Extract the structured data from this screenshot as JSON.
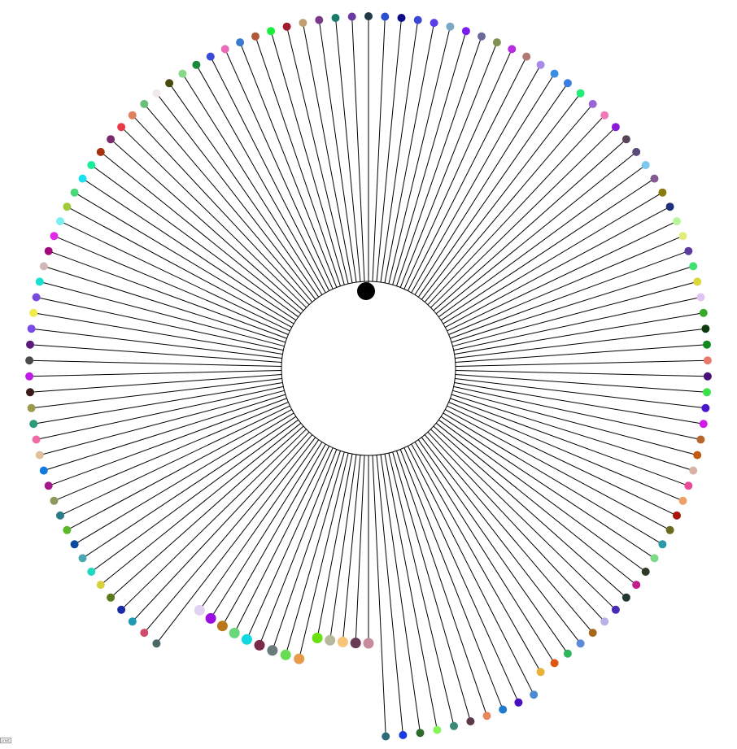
{
  "corner_tag": "crest",
  "diagram": {
    "type": "radial-tree",
    "root_color": "#000000",
    "link_color": "#000000",
    "nodes_clockwise_from_top": [
      "#1f3a44",
      "#2b4fcf",
      "#0b0b8a",
      "#3b48d6",
      "#5b3ee8",
      "#7ba7c6",
      "#7a1cf0",
      "#6a6a99",
      "#7d9152",
      "#b82cdf",
      "#b07a70",
      "#a88ae8",
      "#3b8fe0",
      "#3d7ce0",
      "#22ee77",
      "#9b66d8",
      "#ef7ab8",
      "#8c1ad8",
      "#5a4558",
      "#5a4a7a",
      "#7cc6f0",
      "#855a92",
      "#8a7a10",
      "#1f2f7a",
      "#b8f59a",
      "#e3ee7a",
      "#5a3ba0",
      "#3fe070",
      "#dcd63a",
      "#dfc4f4",
      "#3aaa2f",
      "#0f3a0f",
      "#0f8a1f",
      "#e77a6a",
      "#4a107a",
      "#3ae34a",
      "#4a16cc",
      "#d21ae8",
      "#b8642a",
      "#c25a0f",
      "#d8b2a5",
      "#ea4a9a",
      "#eea06a",
      "#a8150f",
      "#6a6a1f",
      "#2a9aa5",
      "#7ed88a",
      "#2f3a25",
      "#c31c8a",
      "#1f3a2f",
      "#4a2ab5",
      "#b8b2e8",
      "#a8681a",
      "#5a8ad8",
      "#2fb55a",
      "#e0550f",
      "#e8b23a",
      "#4a8ad0",
      "#4a10c0",
      "#1f7acc",
      "#e8885a",
      "#5a3a4a",
      "#3a8a7a",
      "#88f55a",
      "#2f6a2a",
      "#1a3ae0",
      "#2f6a7a",
      "#c88a9a",
      "#6a3a55",
      "#f8c47a",
      "#b8b89a",
      "#6ae00f",
      "#e89a4a",
      "#66dd55",
      "#6a7a7a",
      "#7a2a4a",
      "#0fd8e0",
      "#6ad87a",
      "#b8781a",
      "#9a0fe0",
      "#e0d2f0",
      "#4a6a6a",
      "#d04a6a",
      "#1f9ab5",
      "#1a2aa5",
      "#5a7a1f",
      "#d8d03a",
      "#1fd8c0",
      "#4aa8b0",
      "#0a4a9a",
      "#5ab82a",
      "#2a7a8a",
      "#8a9a5a",
      "#a01a8a",
      "#0f7ae0",
      "#e0c09a",
      "#f06aa5",
      "#2a9a7a",
      "#9a9a4a",
      "#3a1a1a",
      "#c01ae8",
      "#4a4a4a",
      "#5a1a7a",
      "#7a4ae8",
      "#f0ea4a",
      "#7a4ae0",
      "#1ae0d0",
      "#d0b8b8",
      "#a00a7a",
      "#e02ae8",
      "#7aeef0",
      "#a0cc3a",
      "#4ad87a",
      "#1ae0f0",
      "#1aee9a",
      "#a8320f",
      "#7a2a6a",
      "#e83a4a",
      "#e0805a",
      "#6ac07a",
      "#f0eaf0",
      "#4a4a10",
      "#88d88a",
      "#1a8a3a",
      "#3a4ad8",
      "#ea6aba",
      "#3a7ad0",
      "#b05a3a",
      "#1aee3a",
      "#a01a30",
      "#c0a070",
      "#7a3a8a",
      "#1a7a6a",
      "#6a3aa0"
    ]
  }
}
